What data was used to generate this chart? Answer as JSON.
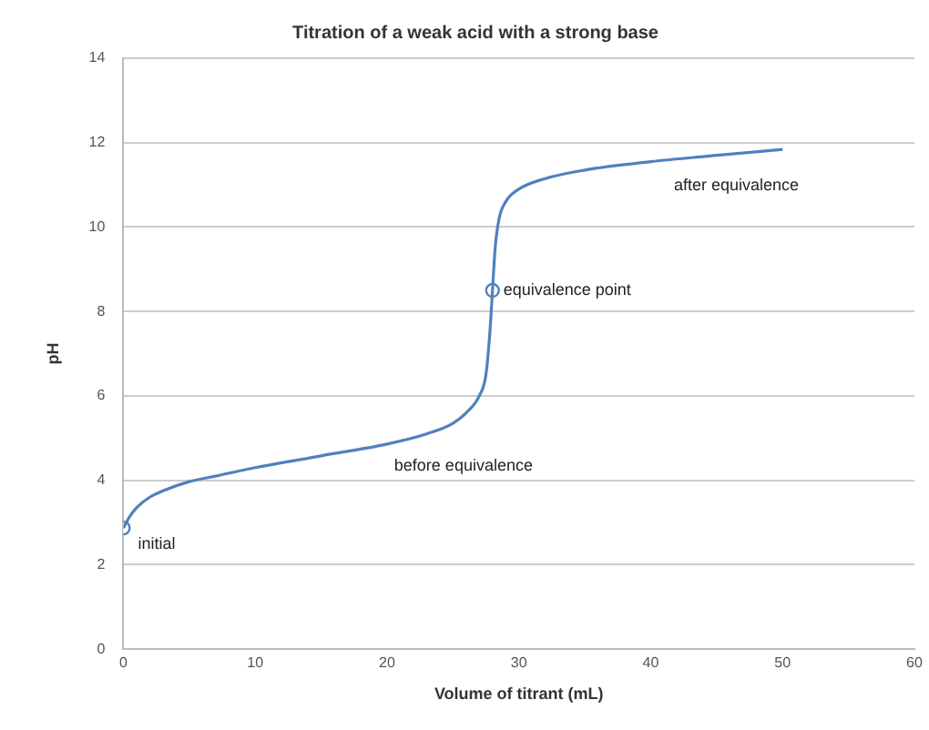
{
  "chart_data": {
    "type": "line",
    "title": "Titration of a weak acid with a strong base",
    "xlabel": "Volume of titrant (mL)",
    "ylabel": "pH",
    "series": [
      {
        "color": "#4f81bd",
        "marker": "none",
        "x": [
          0,
          0.5,
          1,
          2,
          3,
          5,
          7,
          10,
          15,
          20,
          23,
          25,
          26,
          27,
          27.5,
          27.8,
          28,
          28.2,
          28.5,
          29,
          30,
          32,
          35,
          40,
          45,
          50
        ],
        "values": [
          2.87,
          3.15,
          3.35,
          3.6,
          3.75,
          3.97,
          4.1,
          4.3,
          4.58,
          4.86,
          5.1,
          5.35,
          5.6,
          6.0,
          6.5,
          7.5,
          8.5,
          9.5,
          10.2,
          10.6,
          10.9,
          11.15,
          11.35,
          11.55,
          11.7,
          11.84
        ]
      },
      {
        "type": "scatter",
        "color": "#4f81bd",
        "marker": "circle",
        "x": [
          0,
          28
        ],
        "values": [
          2.87,
          8.5
        ]
      }
    ],
    "annotations": [
      {
        "text": "initial",
        "x": 0,
        "y": 2.87
      },
      "before equivalence",
      {
        "text": "equivalence point",
        "x": 28,
        "y": 8.5
      },
      "after equivalence"
    ],
    "xlim": [
      0,
      60
    ],
    "xticks": [
      0,
      10,
      20,
      30,
      40,
      50,
      60
    ],
    "ylim": [
      0,
      14
    ],
    "yticks": [
      0,
      2,
      4,
      6,
      8,
      10,
      12,
      14
    ],
    "grid": "y",
    "legend": false
  }
}
